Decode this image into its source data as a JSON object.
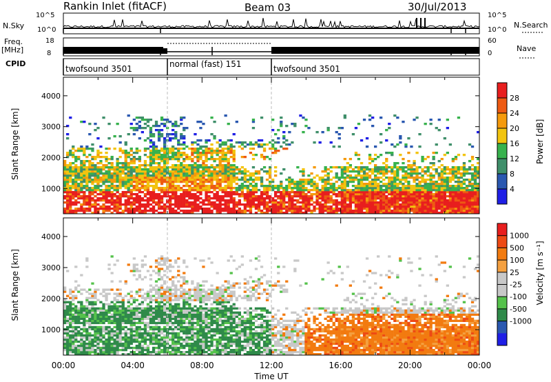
{
  "header": {
    "station": "Rankin Inlet (fitACF)",
    "beam": "Beam 03",
    "date": "30/Jul/2013"
  },
  "strip_labels": {
    "nsky": "N.Sky",
    "nsearch": "N.Search",
    "nsky_top": "10^5",
    "nsky_bottom": "10^0",
    "nsearch_top": "10^5",
    "nsearch_bottom": "10^0",
    "freq": "Freq.",
    "freq_unit": "[MHz]",
    "freq_top": "18",
    "freq_bottom": "8",
    "nave": "Nave",
    "nave_top": "60",
    "nave_bottom": "0",
    "cpid": "CPID"
  },
  "cpid_segments": [
    {
      "label": "twofsound 3501",
      "start_hour": 0,
      "end_hour": 6
    },
    {
      "label": "normal (fast) 151",
      "start_hour": 6,
      "end_hour": 12
    },
    {
      "label": "twofsound 3501",
      "start_hour": 12,
      "end_hour": 24
    }
  ],
  "colors": {
    "power": [
      "#1f1fe6",
      "#2a58b0",
      "#3f8f6a",
      "#37b24d",
      "#f2c40f",
      "#f59a0c",
      "#ee5a12",
      "#e81e1e"
    ],
    "velocity": [
      "#e81e1e",
      "#ee4a14",
      "#f27b10",
      "#f4a040",
      "#c8c8c8",
      "#c8c8c8",
      "#55c24b",
      "#2f8a4a",
      "#2a58b0",
      "#1f1fe6"
    ]
  },
  "chart_data": [
    {
      "type": "heatmap",
      "title": "Power",
      "ylabel": "Slant Range [km]",
      "xlabel": "",
      "ylim": [
        180,
        4600
      ],
      "xlim": [
        0,
        24
      ],
      "yticks": [
        "1000",
        "2000",
        "3000",
        "4000"
      ],
      "colorbar_label": "Power [dB]",
      "colorbar_ticks": [
        "4",
        "8",
        "12",
        "16",
        "20",
        "24",
        "28"
      ]
    },
    {
      "type": "heatmap",
      "title": "Velocity",
      "ylabel": "Slant Range [km]",
      "xlabel": "Time UT",
      "ylim": [
        180,
        4600
      ],
      "xlim": [
        0,
        24
      ],
      "yticks": [
        "1000",
        "2000",
        "3000",
        "4000"
      ],
      "xticks": [
        "00:00",
        "04:00",
        "08:00",
        "12:00",
        "16:00",
        "20:00",
        "00:00"
      ],
      "colorbar_label": "Velocity [m s⁻¹]",
      "colorbar_ticks": [
        "1000",
        "500",
        "100",
        "25",
        "-25",
        "-100",
        "-500",
        "-1000"
      ]
    }
  ]
}
